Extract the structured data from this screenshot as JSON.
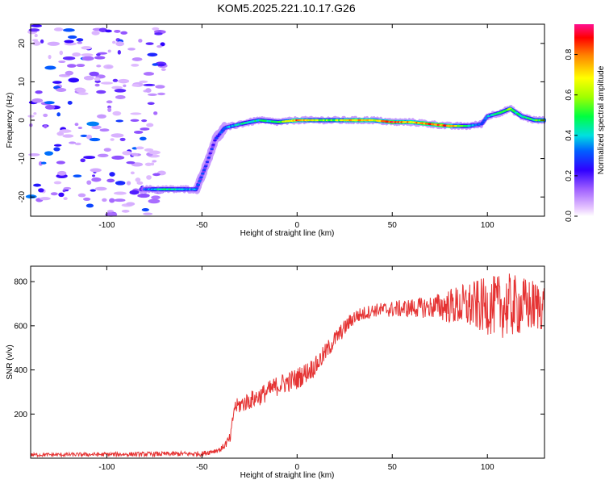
{
  "title": "KOM5.2025.221.10.17.G26",
  "chart_data": [
    {
      "type": "heatmap",
      "xlabel": "Height of straight line (km)",
      "ylabel": "Frequency (Hz)",
      "xlim": [
        -140,
        130
      ],
      "ylim": [
        -25,
        25
      ],
      "xticks": [
        -100,
        -50,
        0,
        50,
        100
      ],
      "yticks": [
        -20,
        -10,
        0,
        10,
        20
      ],
      "colorbar": {
        "label": "Normalized spectral amplitude",
        "range": [
          0,
          0.95
        ],
        "ticks": [
          0.0,
          0.2,
          0.4,
          0.6,
          0.8
        ]
      },
      "ridge": {
        "description_points": [
          {
            "x": -80,
            "y": -18,
            "a": 0.3
          },
          {
            "x": -70,
            "y": -18,
            "a": 0.45
          },
          {
            "x": -60,
            "y": -18,
            "a": 0.4
          },
          {
            "x": -53,
            "y": -18,
            "a": 0.35
          },
          {
            "x": -48,
            "y": -12,
            "a": 0.25
          },
          {
            "x": -43,
            "y": -5,
            "a": 0.25
          },
          {
            "x": -38,
            "y": -2,
            "a": 0.35
          },
          {
            "x": -30,
            "y": -1,
            "a": 0.4
          },
          {
            "x": -20,
            "y": 0,
            "a": 0.45
          },
          {
            "x": -10,
            "y": -0.5,
            "a": 0.45
          },
          {
            "x": 0,
            "y": 0,
            "a": 0.8
          },
          {
            "x": 10,
            "y": 0,
            "a": 0.6
          },
          {
            "x": 20,
            "y": 0,
            "a": 0.55
          },
          {
            "x": 30,
            "y": 0,
            "a": 0.75
          },
          {
            "x": 40,
            "y": 0,
            "a": 0.65
          },
          {
            "x": 50,
            "y": -0.5,
            "a": 0.85
          },
          {
            "x": 60,
            "y": -0.5,
            "a": 0.7
          },
          {
            "x": 70,
            "y": -1,
            "a": 0.8
          },
          {
            "x": 80,
            "y": -1.5,
            "a": 0.8
          },
          {
            "x": 90,
            "y": -1.5,
            "a": 0.4
          },
          {
            "x": 97,
            "y": -1,
            "a": 0.3
          },
          {
            "x": 100,
            "y": 1,
            "a": 0.35
          },
          {
            "x": 107,
            "y": 2,
            "a": 0.45
          },
          {
            "x": 112,
            "y": 3,
            "a": 0.55
          },
          {
            "x": 118,
            "y": 1,
            "a": 0.4
          },
          {
            "x": 125,
            "y": 0,
            "a": 0.5
          },
          {
            "x": 130,
            "y": 0,
            "a": 0.6
          }
        ],
        "noise_region": {
          "x": [
            -140,
            -80
          ],
          "y": [
            -25,
            25
          ],
          "amplitude": [
            0.05,
            0.35
          ]
        }
      }
    },
    {
      "type": "line",
      "xlabel": "Height of straight line (km)",
      "ylabel": "SNR (v/v)",
      "xlim": [
        -140,
        130
      ],
      "ylim": [
        0,
        870
      ],
      "xticks": [
        -100,
        -50,
        0,
        50,
        100
      ],
      "yticks": [
        200,
        400,
        600,
        800
      ],
      "color": "#e53333",
      "series_trend": [
        {
          "x": -140,
          "y": 15
        },
        {
          "x": -50,
          "y": 20
        },
        {
          "x": -40,
          "y": 40
        },
        {
          "x": -35,
          "y": 90
        },
        {
          "x": -33,
          "y": 230
        },
        {
          "x": -20,
          "y": 280
        },
        {
          "x": -10,
          "y": 330
        },
        {
          "x": 0,
          "y": 360
        },
        {
          "x": 10,
          "y": 420
        },
        {
          "x": 20,
          "y": 540
        },
        {
          "x": 30,
          "y": 640
        },
        {
          "x": 40,
          "y": 670
        },
        {
          "x": 60,
          "y": 680
        },
        {
          "x": 80,
          "y": 690
        },
        {
          "x": 100,
          "y": 690
        },
        {
          "x": 110,
          "y": 690
        },
        {
          "x": 130,
          "y": 690
        }
      ],
      "noise_amplitude": [
        {
          "x": -140,
          "a": 8
        },
        {
          "x": -40,
          "a": 12
        },
        {
          "x": -30,
          "a": 40
        },
        {
          "x": 0,
          "a": 50
        },
        {
          "x": 40,
          "a": 30
        },
        {
          "x": 70,
          "a": 50
        },
        {
          "x": 90,
          "a": 110
        },
        {
          "x": 110,
          "a": 150
        },
        {
          "x": 130,
          "a": 110
        }
      ]
    }
  ]
}
